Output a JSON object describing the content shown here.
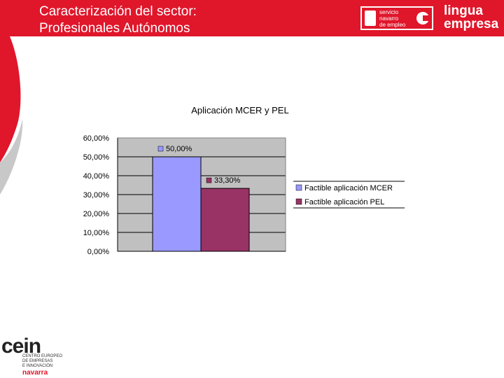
{
  "header": {
    "title_line1": "Caracterización del sector:",
    "title_line2": "Profesionales Autónomos",
    "color": "#e0162b"
  },
  "logos": {
    "sne": [
      "servicio",
      "navarro",
      "de empleo"
    ],
    "lingua": [
      "lingua",
      "empresa"
    ],
    "cein": {
      "brand": "cein",
      "lines": [
        "CENTRO EUROPEO",
        "DE EMPRESAS",
        "E INNOVACIÓN"
      ],
      "region": "navarra"
    }
  },
  "chart_data": {
    "type": "bar",
    "title": "Aplicación MCER y PEL",
    "categories": [
      ""
    ],
    "series": [
      {
        "name": "Factible aplicación MCER",
        "values": [
          50.0
        ],
        "label": "50,00%",
        "color": "#9999ff"
      },
      {
        "name": "Factible aplicación PEL",
        "values": [
          33.3
        ],
        "label": "33,30%",
        "color": "#993366"
      }
    ],
    "ylim": [
      0,
      60
    ],
    "yticks": [
      0,
      10,
      20,
      30,
      40,
      50,
      60
    ],
    "ytick_labels": [
      "0,00%",
      "10,00%",
      "20,00%",
      "30,00%",
      "40,00%",
      "50,00%",
      "60,00%"
    ],
    "xlabel": "",
    "ylabel": "",
    "grid": "horizontal",
    "plot_background": "#c0c0c0",
    "legend_position": "right"
  }
}
